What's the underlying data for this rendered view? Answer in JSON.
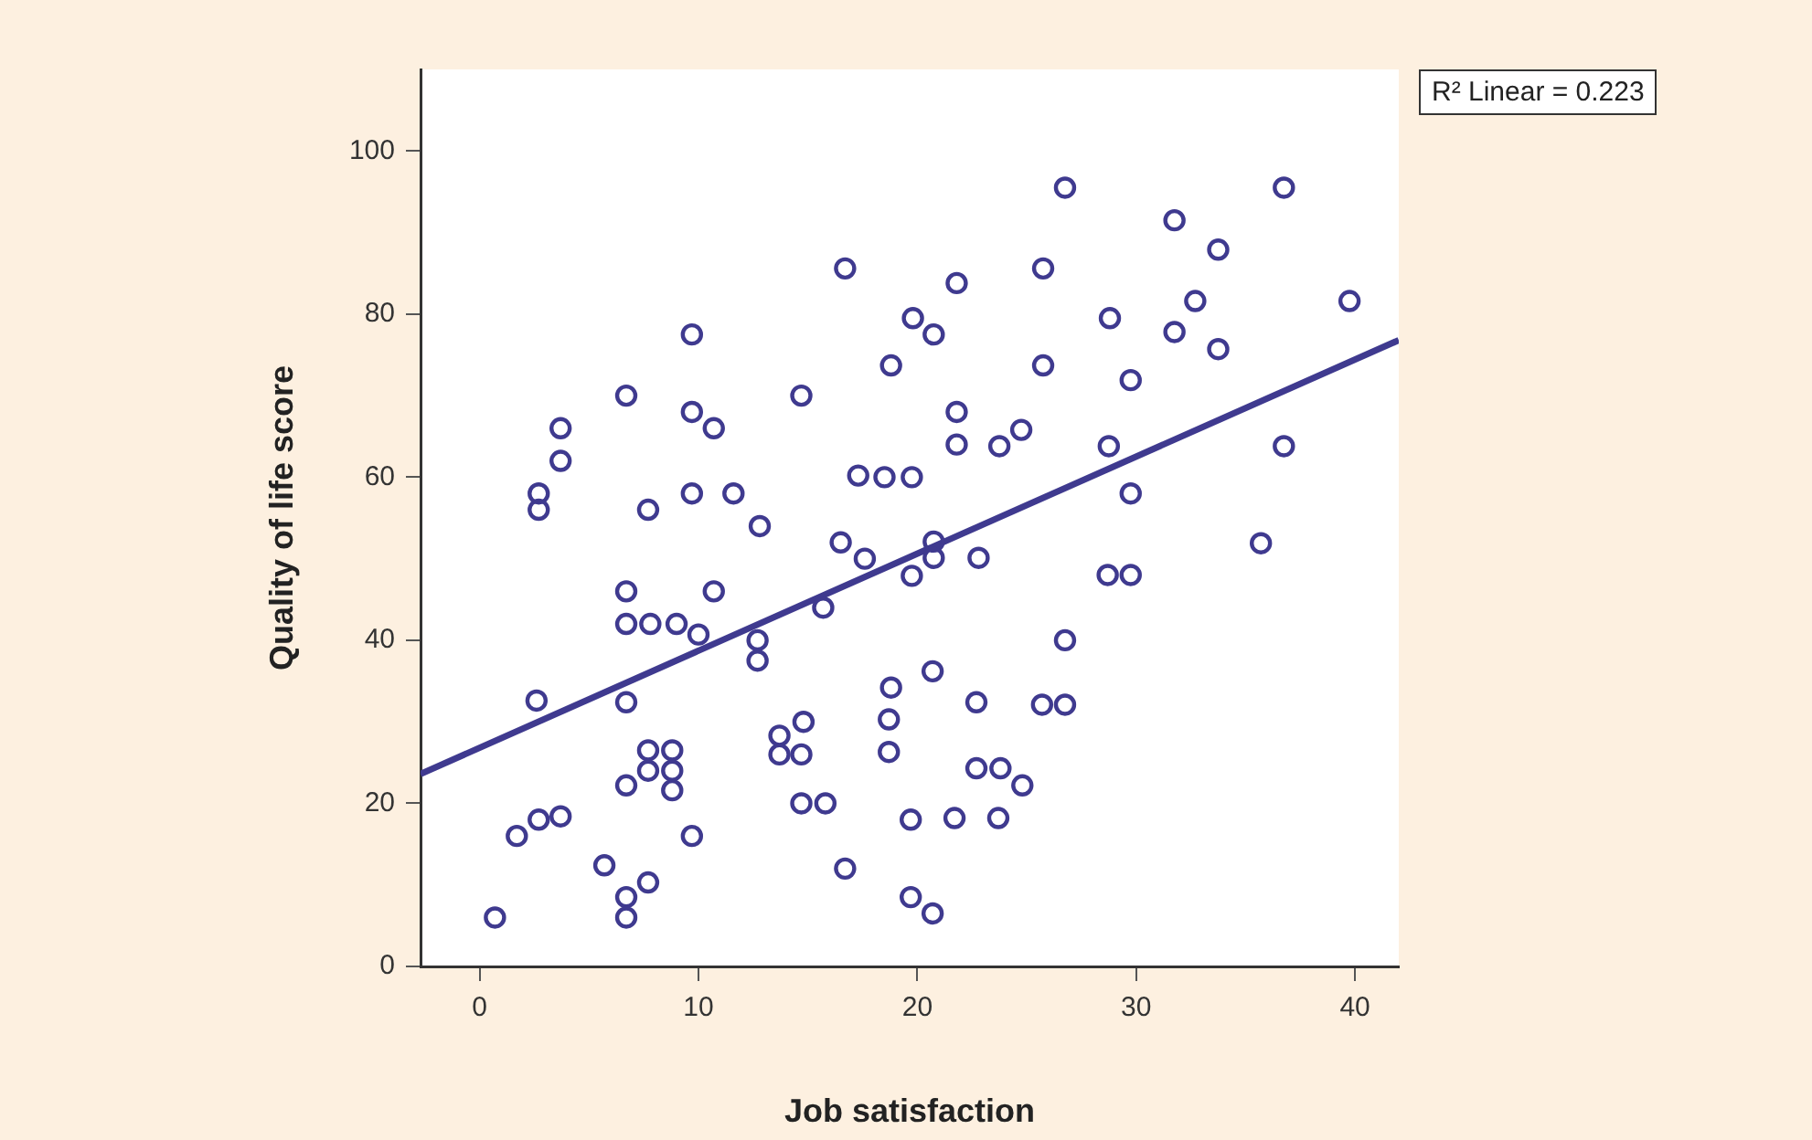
{
  "chart_data": {
    "type": "scatter",
    "xlabel": "Job satisfaction",
    "ylabel": "Quality of life score",
    "xlim": [
      -2.7,
      42
    ],
    "ylim": [
      0,
      110
    ],
    "xticks": [
      0,
      10,
      20,
      30,
      40
    ],
    "yticks": [
      0,
      20,
      40,
      60,
      80,
      100
    ],
    "grid": false,
    "legend": false,
    "marker": "circle",
    "annotations": [
      "R² Linear = 0.223"
    ],
    "series": [
      {
        "color": "#3f3a8f",
        "x": [
          0.7,
          1.7,
          2.6,
          2.7,
          3.7,
          2.7,
          2.7,
          3.7,
          3.7,
          6.7,
          6.7,
          6.7,
          7.8,
          9,
          6.7,
          6.7,
          6.7,
          6.7,
          7.7,
          7.7,
          7.7,
          8.8,
          8.8,
          8.8,
          7.7,
          5.7,
          9.7,
          9.7,
          9.7,
          9.7,
          10,
          10.7,
          10.7,
          11.6,
          12.8,
          12.7,
          12.7,
          13.7,
          13.7,
          14.7,
          14.8,
          14.7,
          14.7,
          15.8,
          15.7,
          16.7,
          16.5,
          17.6,
          17.3,
          16.7,
          18.5,
          19.75,
          18.8,
          18.8,
          18.7,
          18.7,
          19.8,
          19.75,
          19.7,
          19.7,
          20.75,
          20.75,
          20.75,
          20.7,
          20.7,
          21.8,
          21.8,
          21.8,
          21.7,
          22.8,
          22.7,
          22.7,
          23.75,
          23.8,
          23.7,
          24.75,
          24.8,
          25.75,
          25.75,
          25.7,
          26.75,
          26.75,
          26.75,
          28.7,
          28.8,
          28.75,
          29.75,
          29.75,
          29.75,
          31.75,
          31.75,
          32.7,
          33.75,
          33.75,
          35.7,
          36.75,
          36.75,
          39.75
        ],
        "values": [
          6,
          16,
          32.6,
          18,
          18.4,
          58,
          56,
          62,
          66,
          70,
          46,
          42,
          42,
          42,
          32.4,
          22.2,
          8.5,
          6,
          56,
          26.5,
          24,
          26.5,
          24,
          21.6,
          10.3,
          12.4,
          77.5,
          68,
          58,
          16,
          40.7,
          66,
          46,
          58,
          54,
          40,
          37.5,
          28.3,
          26,
          26,
          30,
          70,
          20,
          20,
          44,
          85.6,
          52,
          50,
          60.2,
          12,
          60,
          60,
          73.7,
          34.2,
          30.3,
          26.3,
          79.5,
          47.9,
          18,
          8.5,
          77.5,
          52.1,
          50.1,
          36.2,
          6.5,
          83.8,
          68,
          64,
          18.2,
          50.1,
          32.4,
          24.3,
          63.8,
          24.3,
          18.2,
          65.8,
          22.2,
          85.6,
          73.7,
          32.1,
          95.5,
          40,
          32.1,
          48,
          79.5,
          63.8,
          71.9,
          58,
          48,
          91.5,
          77.8,
          81.6,
          87.9,
          75.7,
          51.9,
          95.5,
          63.8,
          81.6
        ]
      },
      {
        "type": "line",
        "color": "#3f3a8f",
        "marker": "none",
        "x": [
          -2.7,
          42
        ],
        "values": [
          23.6,
          76.8
        ]
      }
    ]
  }
}
